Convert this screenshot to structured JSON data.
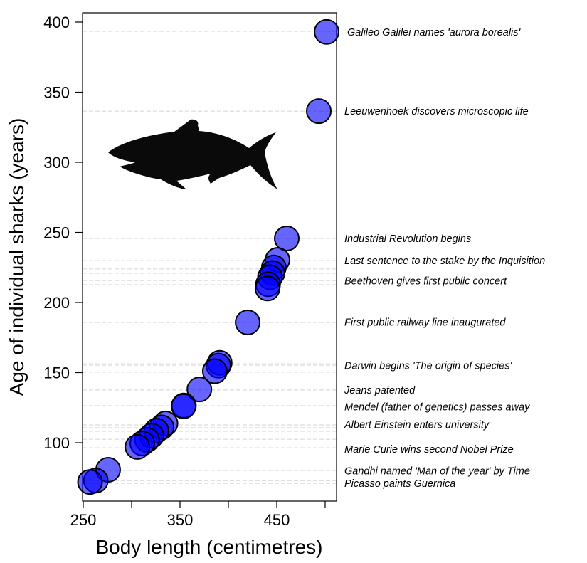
{
  "chart_data": {
    "type": "scatter",
    "xlabel": "Body length (centimetres)",
    "ylabel": "Age of individual sharks (years)",
    "xlim": [
      250,
      505
    ],
    "ylim": [
      66,
      406
    ],
    "x_ticks": [
      250,
      300,
      350,
      400,
      450,
      500
    ],
    "x_tick_labels": [
      "250",
      "",
      "350",
      "",
      "450",
      ""
    ],
    "y_ticks": [
      100,
      150,
      200,
      250,
      300,
      350,
      400
    ],
    "y_tick_labels": [
      "100",
      "150",
      "200",
      "250",
      "300",
      "350",
      "400"
    ],
    "grid": false,
    "point_color": "#0000ff",
    "point_opacity": 0.6,
    "points": [
      {
        "x": 501.5,
        "y": 393
      },
      {
        "x": 493.4,
        "y": 336.5
      },
      {
        "x": 460.3,
        "y": 245.7
      },
      {
        "x": 450.7,
        "y": 230.4
      },
      {
        "x": 447,
        "y": 225
      },
      {
        "x": 445.6,
        "y": 221
      },
      {
        "x": 443,
        "y": 218
      },
      {
        "x": 441,
        "y": 213
      },
      {
        "x": 440.4,
        "y": 210
      },
      {
        "x": 419.9,
        "y": 185.8
      },
      {
        "x": 391,
        "y": 157
      },
      {
        "x": 389.7,
        "y": 155
      },
      {
        "x": 386,
        "y": 151
      },
      {
        "x": 370,
        "y": 138
      },
      {
        "x": 354,
        "y": 126.5
      },
      {
        "x": 353.7,
        "y": 126
      },
      {
        "x": 335,
        "y": 113.7
      },
      {
        "x": 331,
        "y": 111
      },
      {
        "x": 325.7,
        "y": 108.6
      },
      {
        "x": 320.6,
        "y": 105
      },
      {
        "x": 316,
        "y": 102
      },
      {
        "x": 311,
        "y": 99.5
      },
      {
        "x": 306,
        "y": 97
      },
      {
        "x": 275.7,
        "y": 80.7
      },
      {
        "x": 263,
        "y": 73
      },
      {
        "x": 257,
        "y": 72
      }
    ],
    "reference_lines": [
      393.4,
      336.5,
      245.7,
      229.9,
      223.9,
      220.8,
      215.7,
      212.7,
      185.8,
      156.3,
      155.3,
      150.3,
      137.6,
      126.4,
      112.7,
      110.7,
      108.1,
      102.5,
      96.4,
      80.2,
      73,
      71
    ],
    "reference_line_color": "#d3d3d3",
    "annotations": [
      {
        "text": "Galileo Galilei names 'aurora borealis'",
        "y": 393
      },
      {
        "text": "Leeuwenhoek discovers microscopic life",
        "y": 336.5
      },
      {
        "text": "Industrial Revolution begins",
        "y": 245.7
      },
      {
        "text": "Last sentence to the stake by the Inquisition",
        "y": 230
      },
      {
        "text": "Beethoven gives first public concert",
        "y": 215.5
      },
      {
        "text": "First public railway line inaugurated",
        "y": 186
      },
      {
        "text": "Darwin begins 'The origin of species'",
        "y": 155
      },
      {
        "text": "Jeans patented",
        "y": 137.6
      },
      {
        "text": "Mendel (father of genetics) passes away",
        "y": 125.7
      },
      {
        "text": "Albert Einstein enters university",
        "y": 113
      },
      {
        "text": "Marie Curie wins second Nobel Prize",
        "y": 95.5
      },
      {
        "text": "Gandhi named 'Man of the year' by Time",
        "y": 80
      },
      {
        "text": "Picasso paints Guernica",
        "y": 71
      }
    ],
    "icon": "shark-silhouette-icon"
  }
}
